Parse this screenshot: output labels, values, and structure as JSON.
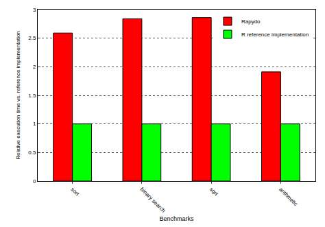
{
  "chart_data": {
    "type": "bar",
    "x_label": "Benchmarks",
    "y_label": "Relative execution time vs. reference implementation",
    "categories": [
      "sort",
      "binary search",
      "sqrt",
      "arithmetic"
    ],
    "series": [
      {
        "name": "Rapydo",
        "color": "#ff0000",
        "values": [
          2.59,
          2.84,
          2.86,
          1.91
        ]
      },
      {
        "name": "R reference implementation",
        "color": "#00ff00",
        "values": [
          1,
          1,
          1,
          1
        ]
      }
    ],
    "ylim": [
      0,
      3
    ],
    "yticks": [
      0,
      0.5,
      1,
      1.5,
      2,
      2.5,
      3
    ],
    "grid": true,
    "legend": "upper right"
  }
}
